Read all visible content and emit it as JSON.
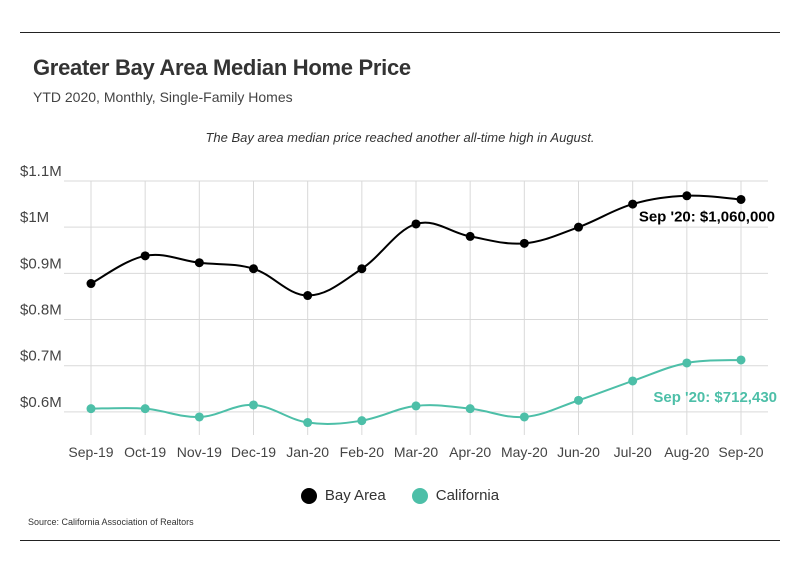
{
  "header": {
    "title": "Greater Bay Area Median Home Price",
    "subtitle": "YTD 2020, Monthly, Single-Family Homes"
  },
  "annotation": "The Bay area median price reached another all-time high in August.",
  "source": "Source:  California Association of Realtors",
  "colors": {
    "bay_area": "#000000",
    "california": "#4dbfa8",
    "grid": "#d9d9d9"
  },
  "chart_data": {
    "type": "line",
    "title": "Greater Bay Area Median Home Price",
    "subtitle": "YTD 2020, Monthly, Single-Family Homes",
    "x": [
      "Sep-19",
      "Oct-19",
      "Nov-19",
      "Dec-19",
      "Jan-20",
      "Feb-20",
      "Mar-20",
      "Apr-20",
      "May-20",
      "Jun-20",
      "Jul-20",
      "Aug-20",
      "Sep-20"
    ],
    "series": [
      {
        "name": "Bay Area",
        "color": "#000000",
        "values": [
          878000,
          938000,
          923000,
          910000,
          852000,
          910000,
          1007000,
          980000,
          965000,
          1000000,
          1050000,
          1068000,
          1060000
        ],
        "end_label": "Sep '20: $1,060,000"
      },
      {
        "name": "California",
        "color": "#4dbfa8",
        "values": [
          607000,
          607000,
          589000,
          615000,
          577000,
          581000,
          613000,
          607000,
          589000,
          625000,
          667000,
          706000,
          712430
        ],
        "end_label": "Sep '20: $712,430"
      }
    ],
    "ylim": [
      550000,
      1100000
    ],
    "yticks": [
      600000,
      700000,
      800000,
      900000,
      1000000,
      1100000
    ],
    "ytick_labels": [
      "$0.6M",
      "$0.7M",
      "$0.8M",
      "$0.9M",
      "$1M",
      "$1.1M"
    ],
    "grid": true,
    "legend": "bottom-center"
  }
}
